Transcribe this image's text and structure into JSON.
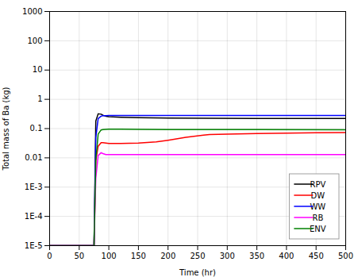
{
  "chart_data": {
    "type": "line",
    "xlabel": "Time (hr)",
    "ylabel": "Total mass of Ba (kg)",
    "xlim": [
      0,
      500
    ],
    "ylim": [
      1e-05,
      1000
    ],
    "xticks": [
      0,
      50,
      100,
      150,
      200,
      250,
      300,
      350,
      400,
      450,
      500
    ],
    "yticks": [
      {
        "value": 1e-05,
        "label": "1E-5"
      },
      {
        "value": 0.0001,
        "label": "1E-4"
      },
      {
        "value": 0.001,
        "label": "1E-3"
      },
      0.01,
      0.1,
      1,
      10,
      100,
      1000
    ],
    "log": "y",
    "grid": true,
    "legend": "lower right",
    "series": [
      {
        "name": "RPV",
        "color": "black",
        "x": [
          0,
          75,
          78,
          82,
          87,
          90,
          95,
          100,
          120,
          150,
          200,
          270,
          350,
          500
        ],
        "values": [
          1e-05,
          1e-05,
          0.18,
          0.32,
          0.31,
          0.285,
          0.265,
          0.255,
          0.245,
          0.235,
          0.228,
          0.225,
          0.222,
          0.22
        ]
      },
      {
        "name": "DW",
        "color": "red",
        "x": [
          0,
          75,
          78,
          82,
          87,
          90,
          95,
          100,
          120,
          150,
          180,
          200,
          230,
          260,
          270,
          300,
          350,
          400,
          450,
          500
        ],
        "values": [
          1e-05,
          1e-05,
          0.008,
          0.025,
          0.033,
          0.033,
          0.032,
          0.031,
          0.031,
          0.032,
          0.035,
          0.04,
          0.05,
          0.06,
          0.063,
          0.065,
          0.068,
          0.07,
          0.072,
          0.073
        ]
      },
      {
        "name": "WW",
        "color": "blue",
        "x": [
          0,
          75,
          78,
          82,
          87,
          90,
          95,
          100,
          120,
          150,
          200,
          350,
          500
        ],
        "values": [
          1e-05,
          1e-05,
          0.05,
          0.22,
          0.265,
          0.275,
          0.278,
          0.28,
          0.28,
          0.28,
          0.28,
          0.28,
          0.28
        ]
      },
      {
        "name": "RB",
        "color": "magenta",
        "x": [
          0,
          75,
          78,
          82,
          87,
          90,
          95,
          100,
          150,
          200,
          350,
          500
        ],
        "values": [
          1e-05,
          1e-05,
          0.002,
          0.012,
          0.015,
          0.014,
          0.013,
          0.013,
          0.013,
          0.013,
          0.013,
          0.013
        ]
      },
      {
        "name": "ENV",
        "color": "green",
        "x": [
          0,
          75,
          78,
          82,
          87,
          90,
          95,
          100,
          120,
          150,
          200,
          350,
          500
        ],
        "values": [
          1e-05,
          1e-05,
          0.008,
          0.065,
          0.09,
          0.093,
          0.094,
          0.095,
          0.095,
          0.094,
          0.093,
          0.092,
          0.091
        ]
      }
    ]
  }
}
